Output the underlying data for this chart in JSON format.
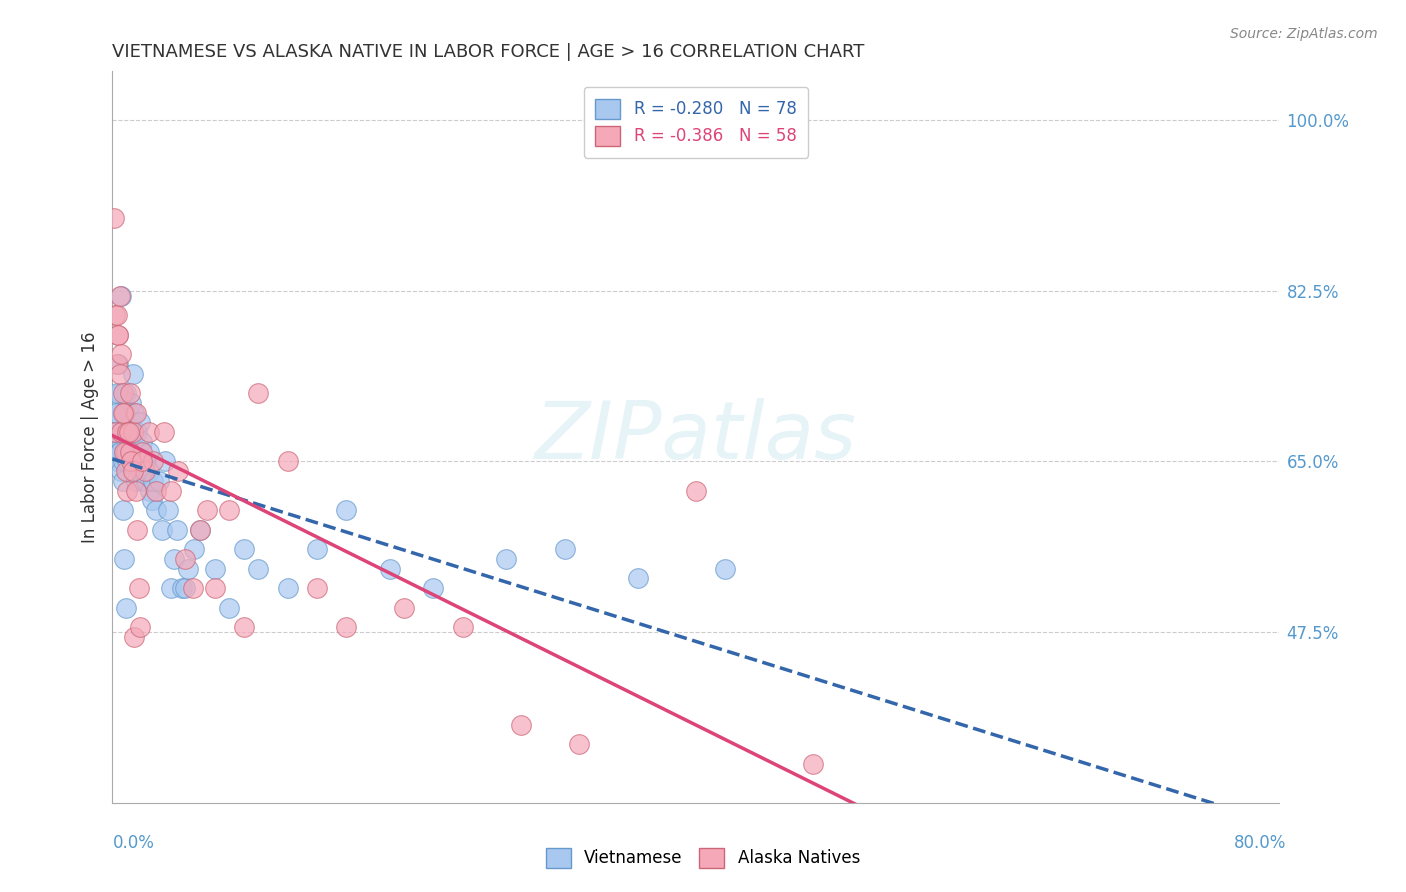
{
  "title": "VIETNAMESE VS ALASKA NATIVE IN LABOR FORCE | AGE > 16 CORRELATION CHART",
  "source": "Source: ZipAtlas.com",
  "ylabel": "In Labor Force | Age > 16",
  "right_yticks": [
    "100.0%",
    "82.5%",
    "65.0%",
    "47.5%"
  ],
  "right_ytick_vals": [
    1.0,
    0.825,
    0.65,
    0.475
  ],
  "xmin": 0.0,
  "xmax": 0.8,
  "ymin": 0.3,
  "ymax": 1.05,
  "viet_color": "#a8c8f0",
  "alaska_color": "#f4a8b8",
  "viet_edge": "#6699cc",
  "alaska_edge": "#cc6677",
  "viet_trend_color": "#3366aa",
  "alaska_trend_color": "#dd4477",
  "viet_R": -0.28,
  "viet_N": 78,
  "alaska_R": -0.386,
  "alaska_N": 58,
  "viet_scatter_x": [
    0.002,
    0.003,
    0.003,
    0.004,
    0.005,
    0.005,
    0.006,
    0.006,
    0.007,
    0.007,
    0.007,
    0.008,
    0.008,
    0.009,
    0.009,
    0.01,
    0.01,
    0.011,
    0.011,
    0.012,
    0.012,
    0.013,
    0.013,
    0.013,
    0.014,
    0.015,
    0.015,
    0.016,
    0.017,
    0.018,
    0.019,
    0.019,
    0.02,
    0.02,
    0.021,
    0.022,
    0.023,
    0.025,
    0.025,
    0.026,
    0.027,
    0.028,
    0.03,
    0.032,
    0.034,
    0.036,
    0.038,
    0.04,
    0.042,
    0.044,
    0.048,
    0.05,
    0.052,
    0.056,
    0.06,
    0.07,
    0.08,
    0.09,
    0.1,
    0.12,
    0.14,
    0.16,
    0.19,
    0.22,
    0.27,
    0.31,
    0.36,
    0.42,
    0.001,
    0.002,
    0.003,
    0.004,
    0.005,
    0.006,
    0.007,
    0.008,
    0.009,
    0.01
  ],
  "viet_scatter_y": [
    0.68,
    0.7,
    0.65,
    0.66,
    0.72,
    0.68,
    0.64,
    0.67,
    0.7,
    0.65,
    0.63,
    0.68,
    0.66,
    0.69,
    0.72,
    0.65,
    0.68,
    0.67,
    0.7,
    0.66,
    0.69,
    0.71,
    0.65,
    0.68,
    0.74,
    0.67,
    0.7,
    0.63,
    0.68,
    0.66,
    0.65,
    0.69,
    0.64,
    0.67,
    0.63,
    0.65,
    0.63,
    0.66,
    0.64,
    0.62,
    0.61,
    0.63,
    0.6,
    0.63,
    0.58,
    0.65,
    0.6,
    0.52,
    0.55,
    0.58,
    0.52,
    0.52,
    0.54,
    0.56,
    0.58,
    0.54,
    0.5,
    0.56,
    0.54,
    0.52,
    0.56,
    0.6,
    0.54,
    0.52,
    0.55,
    0.56,
    0.53,
    0.54,
    0.68,
    0.7,
    0.72,
    0.75,
    0.66,
    0.82,
    0.6,
    0.55,
    0.5,
    0.68
  ],
  "alaska_scatter_x": [
    0.001,
    0.002,
    0.003,
    0.004,
    0.005,
    0.006,
    0.007,
    0.008,
    0.009,
    0.01,
    0.012,
    0.014,
    0.016,
    0.018,
    0.02,
    0.022,
    0.025,
    0.028,
    0.03,
    0.035,
    0.04,
    0.045,
    0.05,
    0.055,
    0.06,
    0.065,
    0.07,
    0.08,
    0.09,
    0.1,
    0.12,
    0.14,
    0.16,
    0.2,
    0.24,
    0.28,
    0.32,
    0.4,
    0.48,
    0.002,
    0.003,
    0.004,
    0.005,
    0.006,
    0.007,
    0.008,
    0.009,
    0.01,
    0.011,
    0.012,
    0.013,
    0.014,
    0.015,
    0.016,
    0.017,
    0.018,
    0.019,
    0.02
  ],
  "alaska_scatter_y": [
    0.9,
    0.68,
    0.75,
    0.78,
    0.74,
    0.68,
    0.72,
    0.7,
    0.66,
    0.68,
    0.72,
    0.68,
    0.7,
    0.65,
    0.66,
    0.64,
    0.68,
    0.65,
    0.62,
    0.68,
    0.62,
    0.64,
    0.55,
    0.52,
    0.58,
    0.6,
    0.52,
    0.6,
    0.48,
    0.72,
    0.65,
    0.52,
    0.48,
    0.5,
    0.48,
    0.38,
    0.36,
    0.62,
    0.34,
    0.8,
    0.8,
    0.78,
    0.82,
    0.76,
    0.7,
    0.66,
    0.64,
    0.62,
    0.68,
    0.66,
    0.65,
    0.64,
    0.47,
    0.62,
    0.58,
    0.52,
    0.48,
    0.65
  ],
  "background_color": "#ffffff",
  "grid_color": "#cccccc",
  "title_color": "#333333",
  "axis_color": "#5599cc"
}
